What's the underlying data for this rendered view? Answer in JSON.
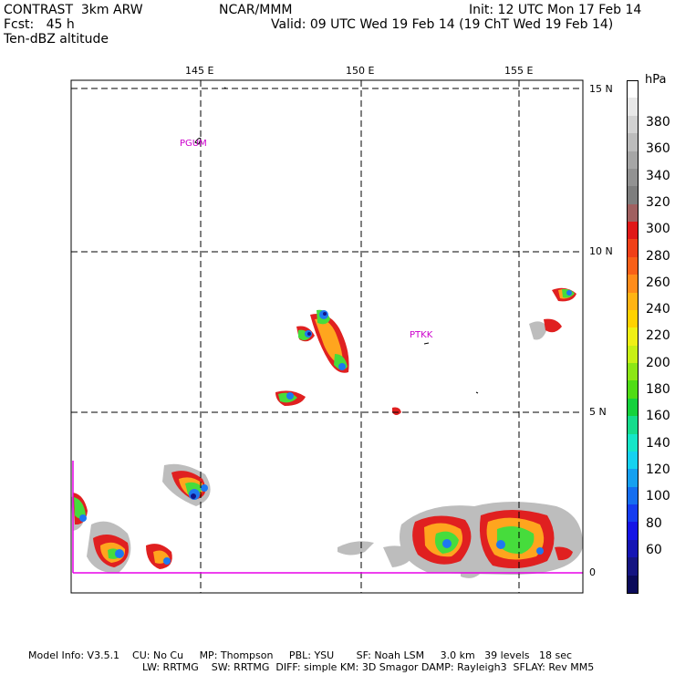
{
  "header": {
    "model": "CONTRAST  3km ARW",
    "org": "NCAR/MMM",
    "init": "Init: 12 UTC Mon 17 Feb 14",
    "fcst": "Fcst:   45 h",
    "valid": "Valid: 09 UTC Wed 19 Feb 14 (19 ChT Wed 19 Feb 14)",
    "field": "Ten-dBZ altitude"
  },
  "axes": {
    "lon_labels": [
      "145 E",
      "150 E",
      "155 E"
    ],
    "lat_labels": [
      "15 N",
      "10 N",
      "5 N",
      "0"
    ]
  },
  "stations": [
    "PGUM",
    "PTKK"
  ],
  "colorbar": {
    "unit": "hPa",
    "labels": [
      "380",
      "360",
      "340",
      "320",
      "300",
      "280",
      "260",
      "240",
      "220",
      "200",
      "180",
      "160",
      "140",
      "120",
      "100",
      "80",
      "60"
    ],
    "colors": [
      "#ffffff",
      "#e8e8e8",
      "#d2d2d2",
      "#bcbcbc",
      "#a6a6a6",
      "#929292",
      "#7e7e7e",
      "#a06060",
      "#e01818",
      "#f04018",
      "#f86018",
      "#ff8c1a",
      "#ffb414",
      "#ffd200",
      "#f0f014",
      "#c8f014",
      "#8ce614",
      "#50dc14",
      "#14d23c",
      "#14dc8c",
      "#14e6c8",
      "#14d2f0",
      "#14a0f0",
      "#146ef0",
      "#143cf0",
      "#1414e6",
      "#1414b4",
      "#141482",
      "#0a0a5a"
    ]
  },
  "footer": {
    "line1": "Model Info: V3.5.1    CU: No Cu     MP: Thompson     PBL: YSU       SF: Noah LSM     3.0 km   39 levels   18 sec",
    "line2": "LW: RRTMG    SW: RRTMG  DIFF: simple KM: 3D Smagor DAMP: Rayleigh3  SFLAY: Rev MM5"
  }
}
